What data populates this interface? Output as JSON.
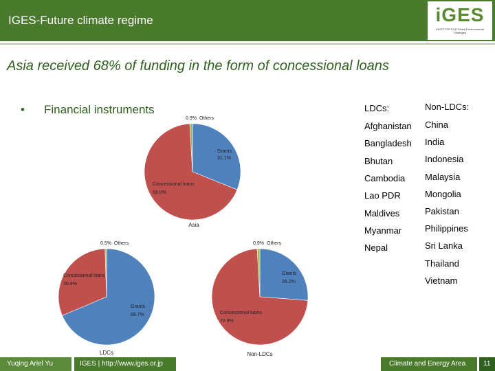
{
  "header": {
    "title": "IGES-Future climate regime"
  },
  "logo": {
    "word": "iGES",
    "subtitle": "INSTITUTE FOR Global Environmental Strategies"
  },
  "slide": {
    "heading": "Asia received 68% of funding in the form of concessional loans",
    "bullet_mark": "•",
    "bullet_text": "Financial instruments"
  },
  "countries": {
    "ldc_header": "LDCs:",
    "non_ldc_header": "Non-LDCs:",
    "ldc": [
      "Afghanistan",
      "Bangladesh",
      "Bhutan",
      "Cambodia",
      "Lao PDR",
      "Maldives",
      "Myanmar",
      "Nepal"
    ],
    "non_ldc": [
      "China",
      "India",
      "Indonesia",
      "Malaysia",
      "Mongolia",
      "Pakistan",
      "Philippines",
      "Sri Lanka",
      "Thailand",
      "Vietnam"
    ]
  },
  "footer": {
    "author": "Yuqing Ariel Yu",
    "org": "IGES | http://www.iges.or.jp",
    "topic": "Climate and Energy Area",
    "page": "11"
  },
  "colors": {
    "grants": "#4f81bd",
    "concessional": "#c0504d",
    "others": "#9bbb59",
    "header": "#4a7a2c"
  },
  "chart_data": [
    {
      "type": "pie",
      "title": "Asia",
      "categories": [
        "Grants",
        "Concessional loans",
        "Others"
      ],
      "values": [
        31.1,
        68.0,
        0.9
      ],
      "labels": [
        "31.1%",
        "68.0%",
        "0.9%"
      ]
    },
    {
      "type": "pie",
      "title": "LDCs",
      "categories": [
        "Grants",
        "Concessional loans",
        "Others"
      ],
      "values": [
        68.7,
        30.9,
        0.5
      ],
      "labels": [
        "68.7%",
        "30.9%",
        "0.5%"
      ]
    },
    {
      "type": "pie",
      "title": "Non-LDCs",
      "categories": [
        "Grants",
        "Concessional loans",
        "Others"
      ],
      "values": [
        26.2,
        72.9,
        0.9
      ],
      "labels": [
        "26.2%",
        "72.9%",
        "0.9%"
      ]
    }
  ]
}
